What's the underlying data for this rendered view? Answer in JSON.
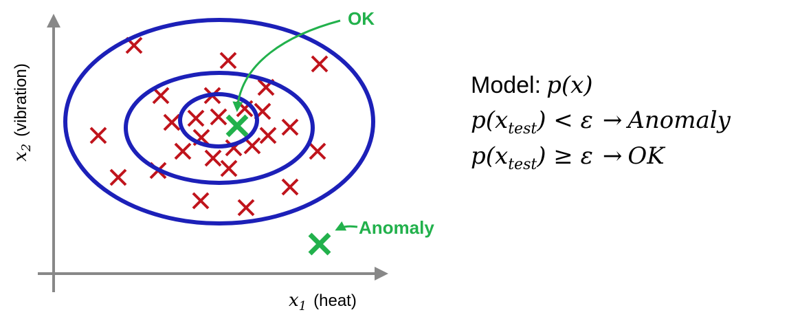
{
  "axes": {
    "x_label": {
      "symbol": "x",
      "subscript": "1",
      "text": "(heat)"
    },
    "y_label": {
      "symbol": "x",
      "subscript": "2",
      "text": "(vibration)"
    }
  },
  "annotations": {
    "ok": "OK",
    "anomaly": "Anomaly"
  },
  "model": {
    "label": "Model:",
    "formula": "p(x)",
    "rules": [
      {
        "prefix": "p(x",
        "subscript": "test",
        "suffix": ") < ε",
        "arrow": "→",
        "result": "Anomaly"
      },
      {
        "prefix": "p(x",
        "subscript": "test",
        "suffix": ") ≥ ε",
        "arrow": "→",
        "result": "OK"
      }
    ]
  }
}
